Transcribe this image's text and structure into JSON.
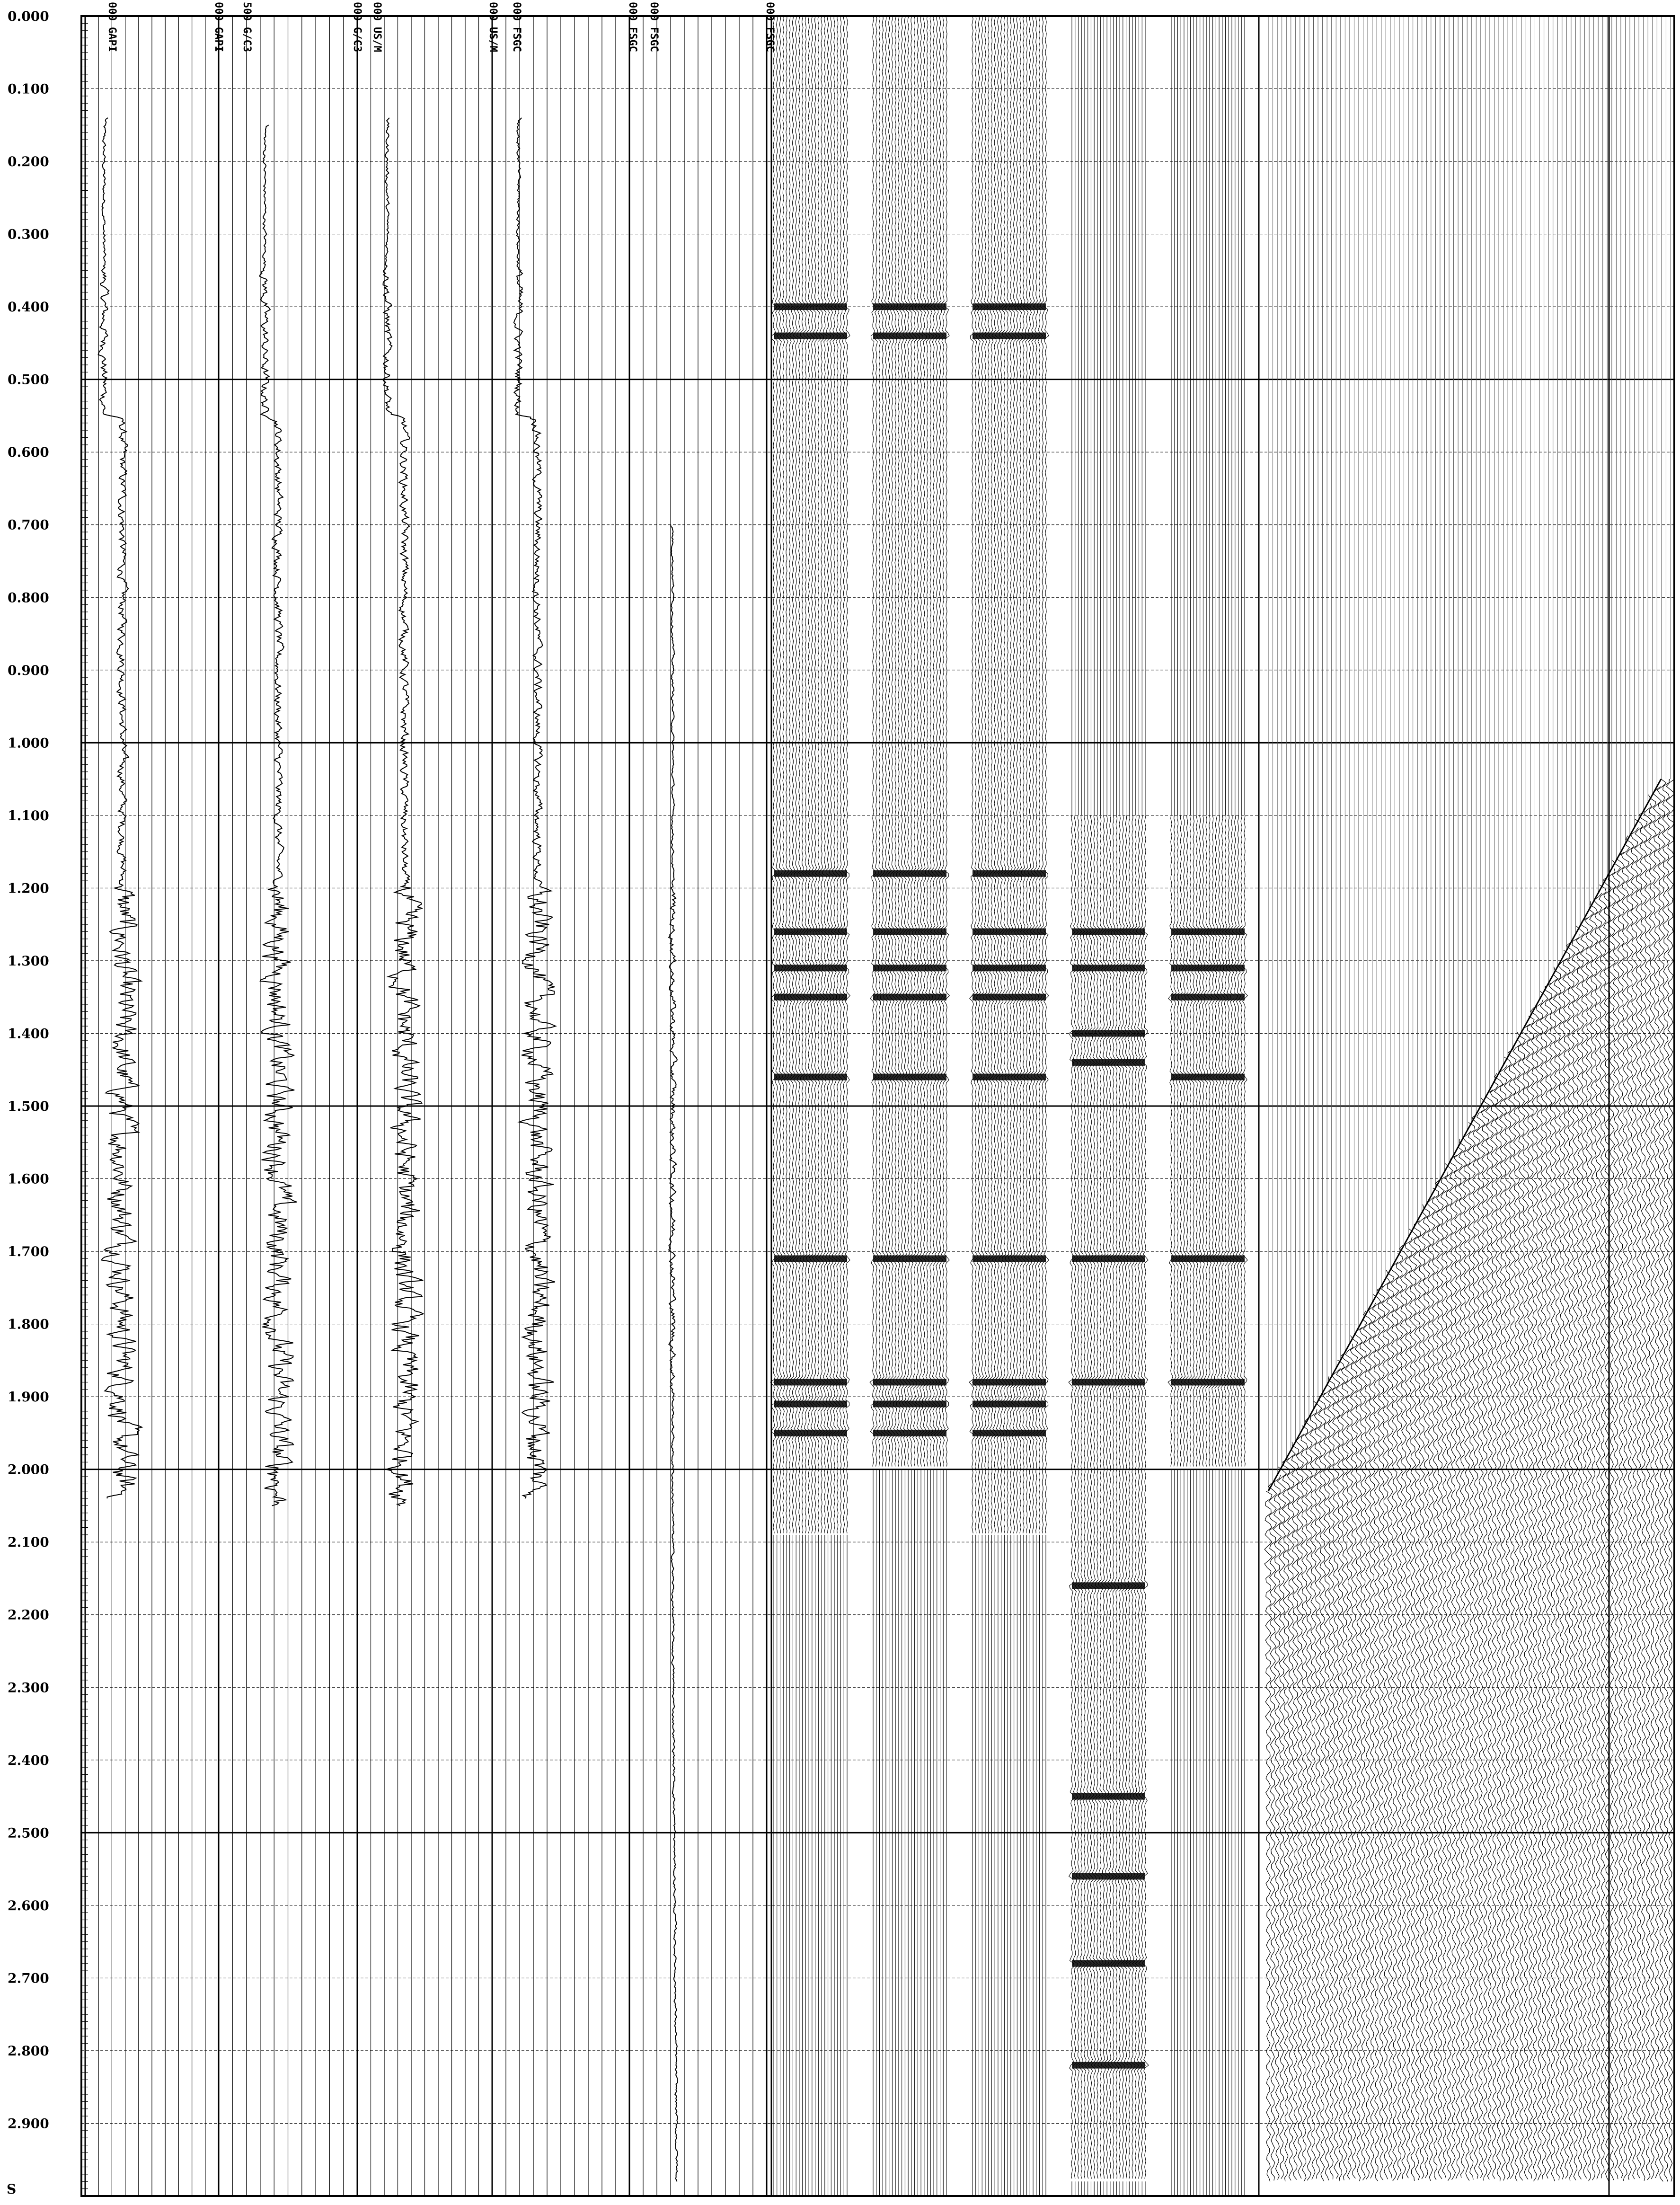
{
  "colors": {
    "ink": "#000000",
    "paper": "#ffffff"
  },
  "chart_data": {
    "type": "line",
    "title": "",
    "xlabel": "",
    "ylabel": "",
    "yunit": "S",
    "ylim": [
      0,
      3.0
    ],
    "y_tick_labels": [
      "0.000",
      "0.100",
      "0.200",
      "0.300",
      "0.400",
      "0.500",
      "0.600",
      "0.700",
      "0.800",
      "0.900",
      "1.000",
      "1.100",
      "1.200",
      "1.300",
      "1.400",
      "1.500",
      "1.600",
      "1.700",
      "1.800",
      "1.900",
      "2.000",
      "2.100",
      "2.200",
      "2.300",
      "2.400",
      "2.500",
      "2.600",
      "2.700",
      "2.800",
      "2.900"
    ],
    "grid": true,
    "track_headers": [
      {
        "scale": "000",
        "unit": "GAPI"
      },
      {
        "scale": "000",
        "unit": "GAPI"
      },
      {
        "scale": "500",
        "unit": "G/C3"
      },
      {
        "scale": "000",
        "unit": "G/C3"
      },
      {
        "scale": "000",
        "unit": "US/M"
      },
      {
        "scale": "000",
        "unit": "US/M"
      },
      {
        "scale": "000",
        "unit": "FSGC"
      },
      {
        "scale": "000",
        "unit": "FSGC"
      },
      {
        "scale": "000",
        "unit": "FSGC"
      },
      {
        "scale": "000",
        "unit": "FSGC"
      }
    ],
    "log_curves": [
      {
        "track": 0,
        "y_start": 0.14,
        "y_end": 2.04
      },
      {
        "track": 1,
        "y_start": 0.15,
        "y_end": 2.05
      },
      {
        "track": 2,
        "y_start": 0.14,
        "y_end": 2.05
      },
      {
        "track": 3,
        "y_start": 0.14,
        "y_end": 2.04
      },
      {
        "track": 4,
        "y_start": 0.7,
        "y_end": 2.98
      }
    ],
    "seismic_panels": [
      {
        "name": "",
        "y_start": 0.0,
        "y_end": 2.09,
        "strong_events": [
          0.4,
          0.44,
          1.18,
          1.26,
          1.31,
          1.35,
          1.46,
          1.71,
          1.88,
          1.91,
          1.95
        ]
      },
      {
        "name": "",
        "y_start": 0.0,
        "y_end": 2.0,
        "strong_events": [
          0.4,
          0.44,
          1.18,
          1.26,
          1.31,
          1.35,
          1.46,
          1.71,
          1.88,
          1.91,
          1.95
        ]
      },
      {
        "name": "",
        "y_start": 0.0,
        "y_end": 2.09,
        "strong_events": [
          0.4,
          0.44,
          1.18,
          1.26,
          1.31,
          1.35,
          1.46,
          1.71,
          1.88,
          1.91,
          1.95
        ]
      },
      {
        "name": "",
        "y_start": 1.1,
        "y_end": 2.98,
        "strong_events": [
          1.26,
          1.31,
          1.4,
          1.44,
          1.71,
          1.88,
          2.16,
          2.45,
          2.56,
          2.68,
          2.82
        ]
      },
      {
        "name": "",
        "y_start": 1.1,
        "y_end": 2.0,
        "strong_events": [
          1.26,
          1.31,
          1.35,
          1.46,
          1.71,
          1.88
        ]
      }
    ],
    "vsp_panel": {
      "first_break_top": 1.05,
      "first_break_bottom": 2.03,
      "y_end": 2.98
    }
  }
}
